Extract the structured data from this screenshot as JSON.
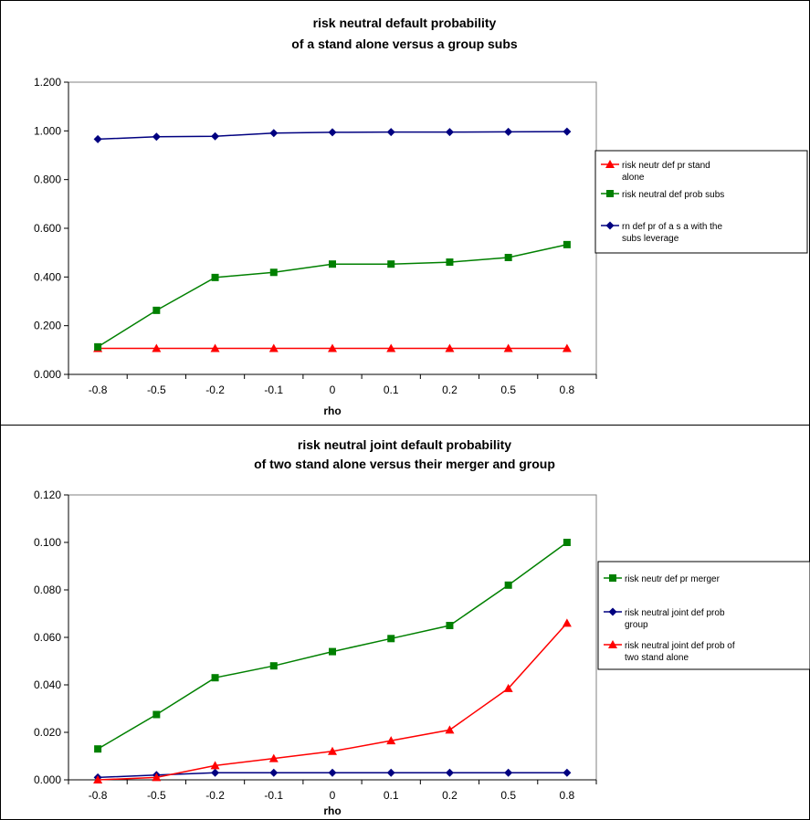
{
  "chart_data": [
    {
      "type": "line",
      "title": "risk neutral default probability",
      "subtitle": "of a stand alone versus  a group subs",
      "xlabel": "rho",
      "ylabel": "",
      "categories": [
        "-0.8",
        "-0.5",
        "-0.2",
        "-0.1",
        "0",
        "0.1",
        "0.2",
        "0.5",
        "0.8"
      ],
      "ylim": [
        0,
        1.2
      ],
      "yticks": [
        "0.000",
        "0.200",
        "0.400",
        "0.600",
        "0.800",
        "1.000",
        "1.200"
      ],
      "grid": false,
      "legend_position": "right",
      "series": [
        {
          "name": "risk neutr def pr stand alone",
          "legend_lines": [
            "risk neutr def pr stand",
            "alone"
          ],
          "color": "#ff0000",
          "marker": "triangle",
          "values": [
            0.107,
            0.107,
            0.107,
            0.107,
            0.107,
            0.107,
            0.107,
            0.107,
            0.107
          ]
        },
        {
          "name": "risk neutral def prob subs",
          "legend_lines": [
            "risk neutral def prob subs"
          ],
          "color": "#008000",
          "marker": "square",
          "values": [
            0.113,
            0.263,
            0.398,
            0.419,
            0.453,
            0.453,
            0.461,
            0.48,
            0.533
          ]
        },
        {
          "name": "rn def pr of a s a with the subs leverage",
          "legend_lines": [
            "rn def pr of a s a with the",
            "subs leverage"
          ],
          "color": "#000080",
          "marker": "diamond",
          "values": [
            0.966,
            0.976,
            0.978,
            0.991,
            0.994,
            0.995,
            0.995,
            0.996,
            0.997
          ]
        }
      ]
    },
    {
      "type": "line",
      "title": "risk neutral joint default probability",
      "subtitle": "of two stand alone versus their merger and group",
      "xlabel": "rho",
      "ylabel": "",
      "categories": [
        "-0.8",
        "-0.5",
        "-0.2",
        "-0.1",
        "0",
        "0.1",
        "0.2",
        "0.5",
        "0.8"
      ],
      "ylim": [
        0,
        0.12
      ],
      "yticks": [
        "0.000",
        "0.020",
        "0.040",
        "0.060",
        "0.080",
        "0.100",
        "0.120"
      ],
      "grid": false,
      "legend_position": "right",
      "series": [
        {
          "name": "risk neutr def pr merger",
          "legend_lines": [
            "risk neutr def pr merger"
          ],
          "color": "#008000",
          "marker": "square",
          "values": [
            0.013,
            0.0275,
            0.043,
            0.048,
            0.054,
            0.0595,
            0.065,
            0.082,
            0.1
          ]
        },
        {
          "name": "risk neutral joint def prob group",
          "legend_lines": [
            "risk neutral joint def prob",
            "group"
          ],
          "color": "#000080",
          "marker": "diamond",
          "values": [
            0.001,
            0.002,
            0.003,
            0.003,
            0.003,
            0.003,
            0.003,
            0.003,
            0.003
          ]
        },
        {
          "name": "risk neutral joint def prob of two stand alone",
          "legend_lines": [
            "risk neutral joint def prob of",
            "two stand alone"
          ],
          "color": "#ff0000",
          "marker": "triangle",
          "values": [
            0.0,
            0.001,
            0.006,
            0.009,
            0.012,
            0.0165,
            0.021,
            0.0385,
            0.066
          ]
        }
      ]
    }
  ]
}
